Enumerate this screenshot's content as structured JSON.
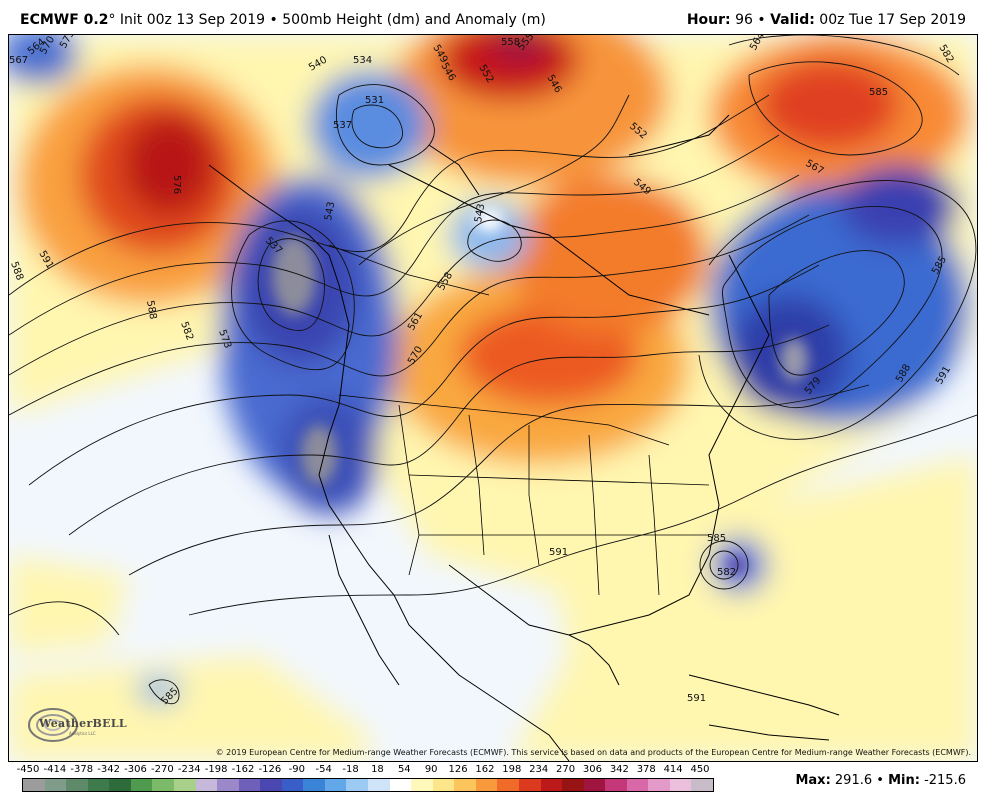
{
  "header": {
    "model": "ECMWF 0.2",
    "degree": "°",
    "init": "Init 00z 13 Sep 2019",
    "separator": "•",
    "field": "500mb Height (dm) and Anomaly (m)",
    "hour_label": "Hour:",
    "hour_value": "96",
    "valid_label": "Valid:",
    "valid_value": "00z Tue 17 Sep 2019"
  },
  "legend": {
    "ticks": [
      "-450",
      "-414",
      "-378",
      "-342",
      "-306",
      "-270",
      "-234",
      "-198",
      "-162",
      "-126",
      "-90",
      "-54",
      "-18",
      "18",
      "54",
      "90",
      "126",
      "162",
      "198",
      "234",
      "270",
      "306",
      "342",
      "378",
      "414",
      "450"
    ],
    "colors": [
      "#9c9c9c",
      "#7f9c8a",
      "#5f8a6a",
      "#3f7a4c",
      "#2e6b3a",
      "#4f9a4f",
      "#7cba6a",
      "#a8d08a",
      "#c6b8d8",
      "#9a88c8",
      "#6e60b8",
      "#4a48b0",
      "#3a5ec8",
      "#3a84d8",
      "#62a8e8",
      "#9ccaf2",
      "#cfe4f8",
      "#ffffff",
      "#fff8bb",
      "#fde58a",
      "#fcc45c",
      "#f89a3c",
      "#f06a2a",
      "#dc3a1e",
      "#bc1a1a",
      "#981414",
      "#a01440",
      "#c4387a",
      "#d868a8",
      "#e49ac8",
      "#ecc0dc",
      "#c8bcc8"
    ],
    "max_label": "Max:",
    "max_value": "291.6",
    "min_label": "Min:",
    "min_value": "-215.6"
  },
  "map": {
    "contour_labels": [
      {
        "text": "564"
      },
      {
        "text": "567"
      },
      {
        "text": "570"
      },
      {
        "text": "573"
      },
      {
        "text": "540"
      },
      {
        "text": "534"
      },
      {
        "text": "531"
      },
      {
        "text": "537"
      },
      {
        "text": "549"
      },
      {
        "text": "558"
      },
      {
        "text": "555"
      },
      {
        "text": "546"
      },
      {
        "text": "552"
      },
      {
        "text": "546"
      },
      {
        "text": "552"
      },
      {
        "text": "564"
      },
      {
        "text": "582"
      },
      {
        "text": "585"
      },
      {
        "text": "576"
      },
      {
        "text": "591"
      },
      {
        "text": "588"
      },
      {
        "text": "543"
      },
      {
        "text": "537"
      },
      {
        "text": "543"
      },
      {
        "text": "549"
      },
      {
        "text": "567"
      },
      {
        "text": "588"
      },
      {
        "text": "582"
      },
      {
        "text": "573"
      },
      {
        "text": "558"
      },
      {
        "text": "561"
      },
      {
        "text": "570"
      },
      {
        "text": "585"
      },
      {
        "text": "579"
      },
      {
        "text": "588"
      },
      {
        "text": "591"
      },
      {
        "text": "591"
      },
      {
        "text": "585"
      },
      {
        "text": "582"
      },
      {
        "text": "591"
      },
      {
        "text": "585"
      }
    ],
    "copyright": "© 2019 European Centre for Medium-range Weather Forecasts (ECMWF). This service is based on data and products of the European Centre for Medium-range Weather Forecasts (ECMWF).",
    "logo_text": "WeatherBELL",
    "logo_sub": "Analytics LLC"
  }
}
